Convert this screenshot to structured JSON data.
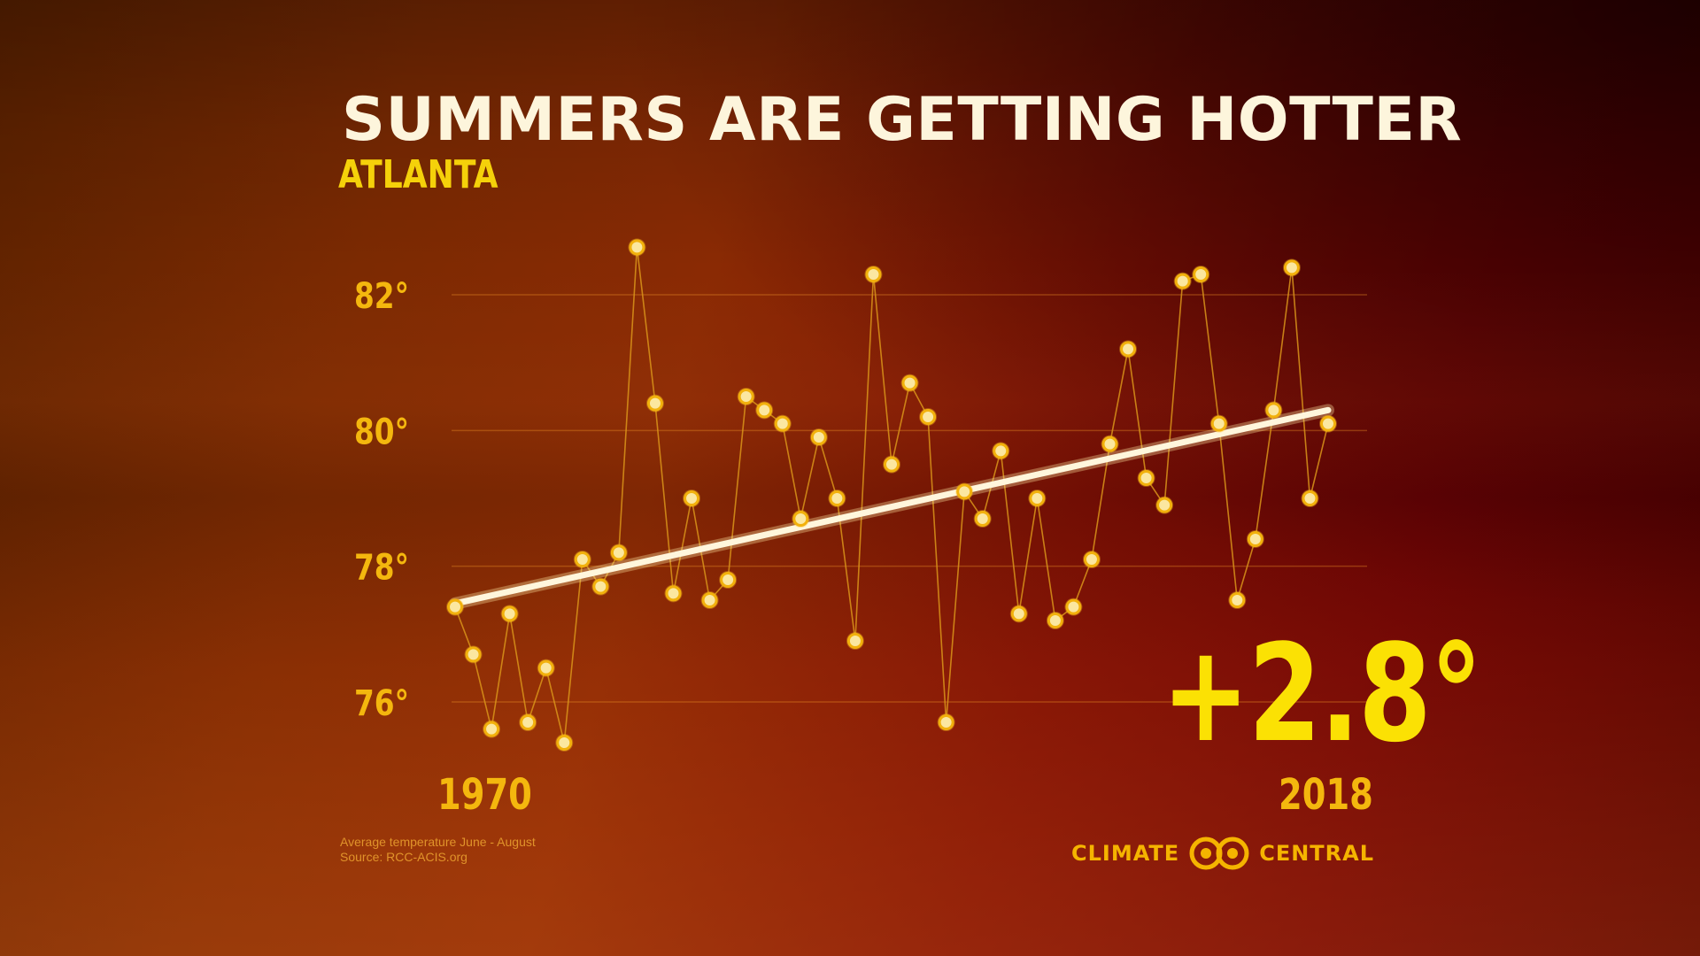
{
  "header": {
    "title": "SUMMERS ARE GETTING HOTTER",
    "subtitle": "ATLANTA"
  },
  "change_label": "+2.8°",
  "footer": {
    "note_line1": "Average temperature June - August",
    "note_line2": "Source: RCC-ACIS.org",
    "brand_left": "CLIMATE",
    "brand_right": "CENTRAL"
  },
  "colors": {
    "title": "#fdf5dc",
    "subtitle": "#f5d10a",
    "tick": "#f4b70e",
    "marker_fill": "#fbe7a0",
    "marker_ring": "#f2b10c",
    "series_line": "#d9941a",
    "trend_line": "#fff6dc",
    "highlight": "#fbe104"
  },
  "chart_data": {
    "type": "scatter",
    "x_tick_labels": [
      "1970",
      "2018"
    ],
    "y_tick_labels": [
      "82°",
      "80°",
      "78°",
      "76°"
    ],
    "y_ticks": [
      82,
      80,
      78,
      76
    ],
    "xlim": [
      1970,
      2018
    ],
    "ylim": [
      75.0,
      83.5
    ],
    "grid": true,
    "series": [
      {
        "x": [
          1970,
          1971,
          1972,
          1973,
          1974,
          1975,
          1976,
          1977,
          1978,
          1979,
          1980,
          1981,
          1982,
          1983,
          1984,
          1985,
          1986,
          1987,
          1988,
          1989,
          1990,
          1991,
          1992,
          1993,
          1994,
          1995,
          1996,
          1997,
          1998,
          1999,
          2000,
          2001,
          2002,
          2003,
          2004,
          2005,
          2006,
          2007,
          2008,
          2009,
          2010,
          2011,
          2012,
          2013,
          2014,
          2015,
          2016,
          2017,
          2018
        ],
        "values": [
          77.4,
          76.7,
          75.6,
          77.3,
          75.7,
          76.5,
          75.4,
          78.1,
          77.7,
          78.2,
          82.7,
          80.4,
          77.6,
          79.0,
          77.5,
          77.8,
          80.5,
          80.3,
          80.1,
          78.7,
          79.9,
          79.0,
          76.9,
          82.3,
          79.5,
          80.7,
          80.2,
          75.7,
          79.1,
          78.7,
          79.7,
          77.3,
          79.0,
          77.2,
          77.4,
          78.1,
          79.8,
          81.2,
          79.3,
          78.9,
          82.2,
          82.3,
          80.1,
          77.5,
          78.4,
          80.3,
          82.4,
          79.0,
          80.1
        ]
      }
    ],
    "trend": {
      "x": [
        1970,
        2018
      ],
      "values": [
        77.45,
        80.3
      ]
    }
  }
}
